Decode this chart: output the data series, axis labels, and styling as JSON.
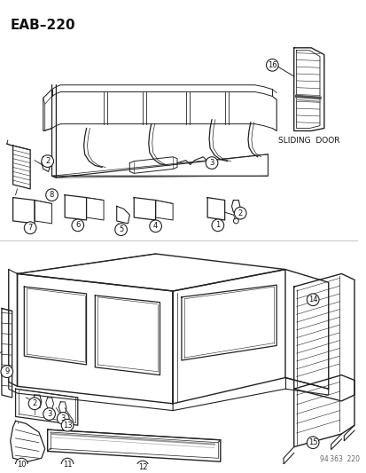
{
  "title": "EAB–220",
  "bg_color": "#ffffff",
  "title_fontsize": 11,
  "sliding_door_label": "SLIDING  DOOR",
  "watermark": "94 363  220",
  "line_color": "#222222",
  "text_color": "#111111",
  "gray_color": "#888888"
}
